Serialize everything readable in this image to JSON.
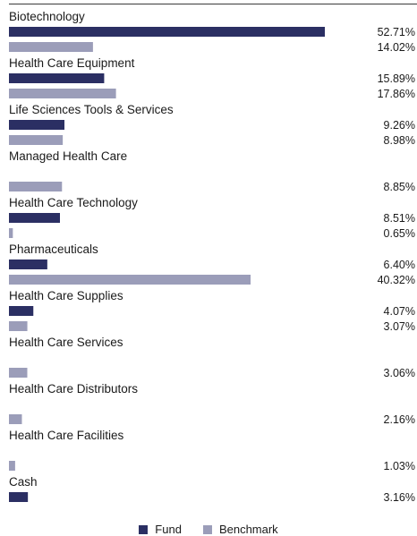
{
  "chart_data": {
    "type": "bar",
    "orientation": "horizontal",
    "categories": [
      "Biotechnology",
      "Health Care Equipment",
      "Life Sciences Tools & Services",
      "Managed Health Care",
      "Health Care Technology",
      "Pharmaceuticals",
      "Health Care Supplies",
      "Health Care Services",
      "Health Care Distributors",
      "Health Care Facilities",
      "Cash"
    ],
    "series": [
      {
        "name": "Fund",
        "color": "#2b2f63",
        "values": [
          52.71,
          15.89,
          9.26,
          null,
          8.51,
          6.4,
          4.07,
          null,
          null,
          null,
          3.16
        ],
        "labels": [
          "52.71%",
          "15.89%",
          "9.26%",
          "",
          "8.51%",
          "6.40%",
          "4.07%",
          "",
          "",
          "",
          "3.16%"
        ]
      },
      {
        "name": "Benchmark",
        "color": "#9b9db9",
        "values": [
          14.02,
          17.86,
          8.98,
          8.85,
          0.65,
          40.32,
          3.07,
          3.06,
          2.16,
          1.03,
          null
        ],
        "labels": [
          "14.02%",
          "17.86%",
          "8.98%",
          "8.85%",
          "0.65%",
          "40.32%",
          "3.07%",
          "3.06%",
          "2.16%",
          "1.03%",
          ""
        ]
      }
    ],
    "xlim": [
      0,
      52.71
    ],
    "grid": false,
    "legend_position": "bottom-center"
  },
  "legend": {
    "fund_label": "Fund",
    "benchmark_label": "Benchmark"
  }
}
